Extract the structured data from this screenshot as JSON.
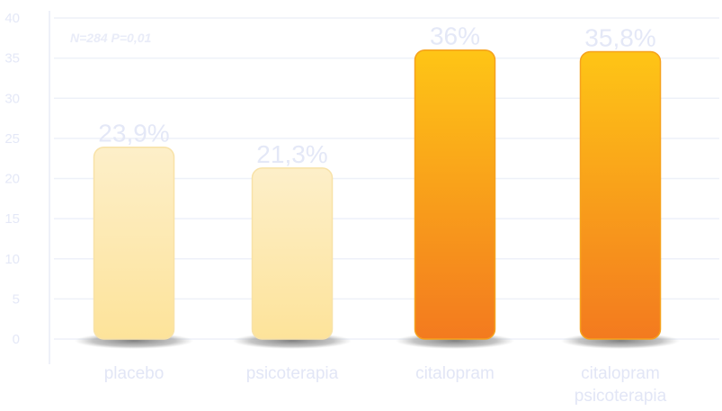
{
  "chart_data": {
    "type": "bar",
    "annotation": "N=284 P=0,01",
    "categories": [
      [
        "placebo"
      ],
      [
        "psicoterapia"
      ],
      [
        "citalopram"
      ],
      [
        "citalopram",
        "psicoterapia"
      ]
    ],
    "values": [
      23.9,
      21.3,
      36,
      35.8
    ],
    "value_labels": [
      "23,9%",
      "21,3%",
      "36%",
      "35,8%"
    ],
    "y_ticks": [
      "0",
      "5",
      "10",
      "15",
      "20",
      "25",
      "30",
      "35",
      "40"
    ],
    "ylim": [
      0,
      40
    ],
    "grid": true,
    "colors": {
      "light_top": "#fdefc9",
      "light_bottom": "#fde39a",
      "dark_top": "#fec516",
      "dark_bottom": "#f37a1f",
      "grid": "#eef1f9",
      "labels": "#e4e8f7"
    },
    "bar_styles": [
      "light",
      "light",
      "dark",
      "dark"
    ]
  }
}
